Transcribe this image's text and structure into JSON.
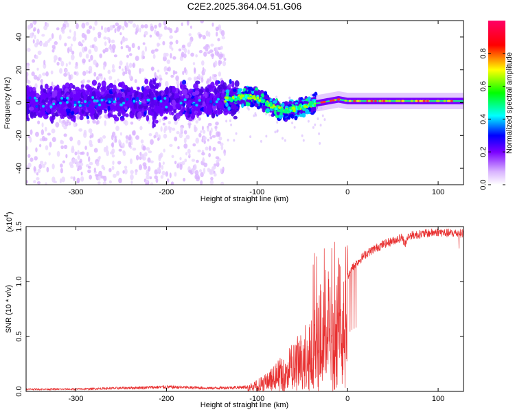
{
  "title": "C2E2.2025.364.04.51.G06",
  "chart_data": [
    {
      "type": "heatmap",
      "xlabel": "Height of straight line (km)",
      "ylabel": "Frequency (Hz)",
      "xlim": [
        -355,
        128
      ],
      "ylim": [
        -50,
        50
      ],
      "xticks": [
        -300,
        -200,
        -100,
        0,
        100
      ],
      "xtick_labels": [
        "-300",
        "-200",
        "-100",
        "0",
        "100"
      ],
      "yticks": [
        -40,
        -20,
        0,
        20,
        40
      ],
      "ytick_labels": [
        "-40",
        "-20",
        "0",
        "20",
        "40"
      ],
      "ridge": {
        "x": [
          -355,
          -300,
          -250,
          -200,
          -150,
          -130,
          -110,
          -100,
          -90,
          -80,
          -70,
          -60,
          -50,
          -40,
          -30,
          -20,
          -10,
          0,
          20,
          50,
          80,
          100,
          128
        ],
        "freq": [
          0,
          0,
          1,
          0,
          1,
          2,
          4,
          3,
          0,
          -3,
          -5,
          -4,
          -2,
          -1,
          0,
          1,
          2,
          1,
          1,
          1,
          1,
          1,
          1
        ]
      },
      "colorbar": {
        "label": "Normalized spectral amplitude",
        "range": [
          0.0,
          1.0
        ],
        "ticks": [
          0.0,
          0.2,
          0.4,
          0.6,
          0.8
        ],
        "tick_labels": [
          "0.0",
          "0.2",
          "0.4",
          "0.6",
          "0.8"
        ],
        "colors": [
          "#ffffff",
          "#d9b3ff",
          "#7a00ff",
          "#0000ff",
          "#00ffff",
          "#00ff00",
          "#ffff00",
          "#ff0000",
          "#ff0066"
        ]
      }
    },
    {
      "type": "line",
      "xlabel": "Height of straight line (km)",
      "ylabel": "SNR (10 * v/v)",
      "scale_label": "(x10",
      "scale_exponent": "4",
      "scale_close": ")",
      "xlim": [
        -355,
        128
      ],
      "ylim": [
        0,
        1.5
      ],
      "xticks": [
        -300,
        -200,
        -100,
        0,
        100
      ],
      "xtick_labels": [
        "-300",
        "-200",
        "-100",
        "0",
        "100"
      ],
      "yticks": [
        0.0,
        0.5,
        1.0,
        1.5
      ],
      "ytick_labels": [
        "0.0",
        "0.5",
        "1.0",
        "1.5"
      ],
      "color": "#e83030",
      "envelope": {
        "x": [
          -355,
          -300,
          -250,
          -200,
          -150,
          -110,
          -100,
          -90,
          -80,
          -70,
          -60,
          -50,
          -40,
          -30,
          -25,
          -20,
          -15,
          -10,
          -5,
          0,
          5,
          10,
          20,
          30,
          40,
          50,
          60,
          64,
          66,
          70,
          80,
          90,
          100,
          110,
          128
        ],
        "y": [
          0.02,
          0.02,
          0.03,
          0.04,
          0.03,
          0.04,
          0.08,
          0.12,
          0.18,
          0.25,
          0.32,
          0.42,
          0.52,
          0.7,
          0.8,
          0.88,
          0.6,
          0.9,
          0.98,
          1.05,
          1.12,
          1.17,
          1.25,
          1.3,
          1.34,
          1.37,
          1.4,
          1.34,
          1.4,
          1.42,
          1.43,
          1.44,
          1.45,
          1.44,
          1.44
        ]
      }
    }
  ]
}
